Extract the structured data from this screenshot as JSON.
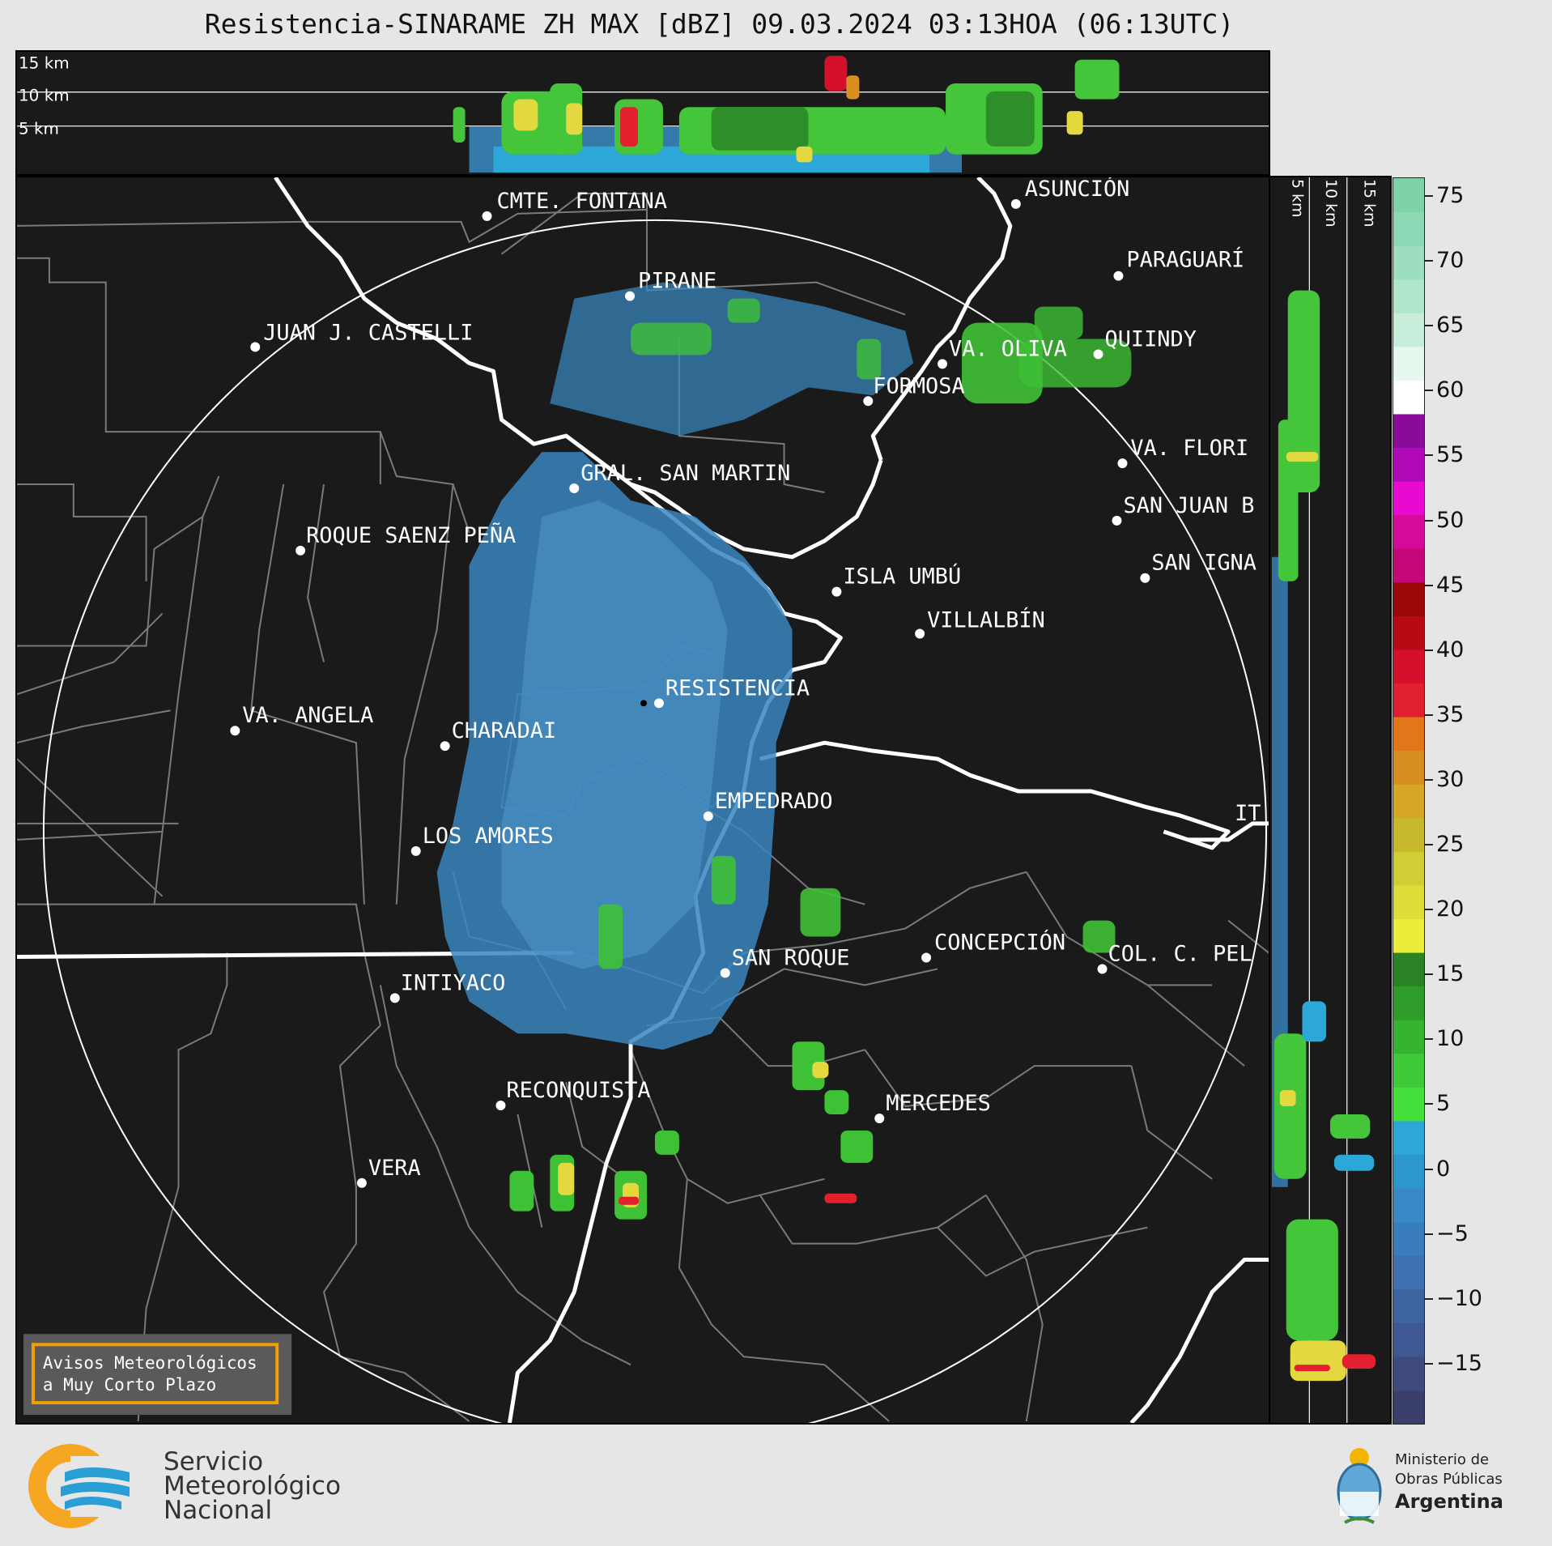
{
  "title": "Resistencia-SINARAME ZH MAX [dBZ] 09.03.2024 03:13HOA (06:13UTC)",
  "top_profile": {
    "labels": [
      "15 km",
      "10 km",
      "5 km"
    ]
  },
  "side_profile": {
    "labels": [
      "5 km",
      "10 km",
      "15 km"
    ]
  },
  "colorbar": {
    "unit": "dBZ",
    "ticks": [
      "75",
      "70",
      "65",
      "60",
      "55",
      "50",
      "45",
      "40",
      "35",
      "30",
      "25",
      "20",
      "15",
      "10",
      "5",
      "0",
      "−5",
      "−10",
      "−15"
    ],
    "colors": [
      "#3a3f6b",
      "#3f4b7e",
      "#405892",
      "#3f64a2",
      "#3d71b1",
      "#3a7dbc",
      "#3689c4",
      "#2c97cd",
      "#2ba8d8",
      "#44e03a",
      "#3ec936",
      "#37b230",
      "#2f9b2a",
      "#2a8426",
      "#ecec3a",
      "#dede3a",
      "#cfce34",
      "#c7b82e",
      "#d4a726",
      "#d88f1f",
      "#e07818",
      "#e02030",
      "#d4102a",
      "#b80a12",
      "#9a0808",
      "#c4087a",
      "#d40a9a",
      "#e80ad0",
      "#b00ab8",
      "#8a0a9a",
      "#ffffff",
      "#e6f7ee",
      "#c8eedb",
      "#b0e6cb",
      "#9cdebd",
      "#8cd8b4",
      "#7ed2a8"
    ]
  },
  "map": {
    "cities": [
      {
        "name": "CMTE. FONTANA"
      },
      {
        "name": "ASUNCIÓN"
      },
      {
        "name": "PARAGUARÍ"
      },
      {
        "name": "PIRANE"
      },
      {
        "name": "JUAN J. CASTELLI"
      },
      {
        "name": "VA. OLIVA"
      },
      {
        "name": "QUIINDY"
      },
      {
        "name": "FORMOSA"
      },
      {
        "name": "VA. FLORI"
      },
      {
        "name": "GRAL. SAN MARTIN"
      },
      {
        "name": "SAN JUAN B"
      },
      {
        "name": "ROQUE SAENZ PEÑA"
      },
      {
        "name": "SAN IGNA"
      },
      {
        "name": "ISLA UMBÚ"
      },
      {
        "name": "VILLALBÍN"
      },
      {
        "name": "RESISTENCIA"
      },
      {
        "name": "VA. ANGELA"
      },
      {
        "name": "CHARADAI"
      },
      {
        "name": "IT"
      },
      {
        "name": "EMPEDRADO"
      },
      {
        "name": "LOS AMORES"
      },
      {
        "name": "CONCEPCIÓN"
      },
      {
        "name": "SAN ROQUE"
      },
      {
        "name": "COL. C. PEL"
      },
      {
        "name": "INTIYACO"
      },
      {
        "name": "RECONQUISTA"
      },
      {
        "name": "MERCEDES"
      },
      {
        "name": "VERA"
      }
    ],
    "warning_box": [
      "Avisos Meteorológicos",
      "a Muy Corto Plazo"
    ]
  },
  "logos": {
    "smn": [
      "Servicio",
      "Meteorológico",
      "Nacional"
    ],
    "ministry": [
      "Ministerio de",
      "Obras Públicas",
      "Argentina"
    ]
  }
}
